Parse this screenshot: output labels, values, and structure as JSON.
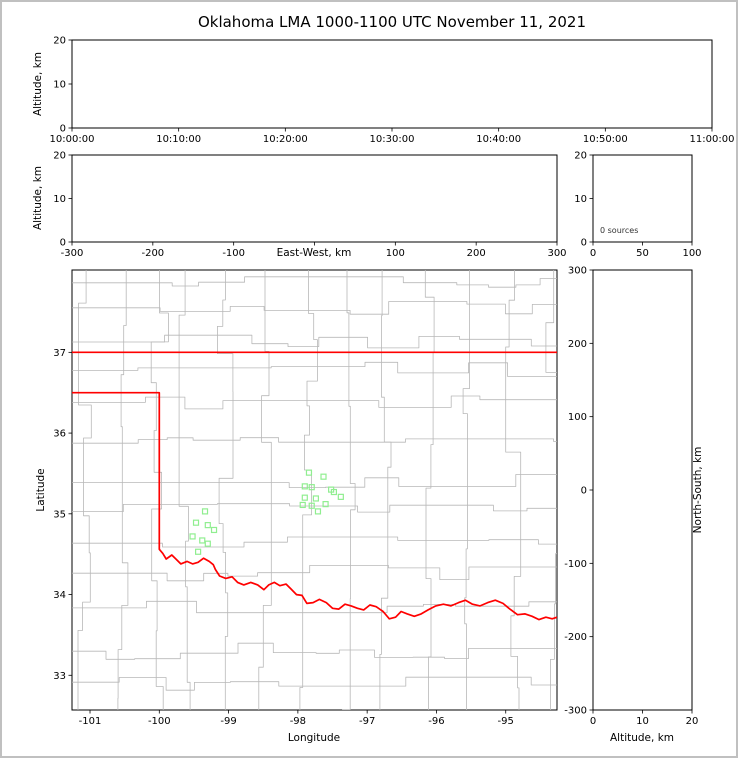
{
  "title": "Oklahoma LMA 1000-1100 UTC November 11, 2021",
  "colors": {
    "axis": "#000000",
    "state_boundary": "#ff0000",
    "county_lines": "#b8b8b8",
    "station_marker": "#90ee90"
  },
  "chart_data": [
    {
      "id": "time_height",
      "type": "scatter",
      "ylabel": "Altitude, km",
      "xticks": [
        "10:00:00",
        "10:10:00",
        "10:20:00",
        "10:30:00",
        "10:40:00",
        "10:50:00",
        "11:00:00"
      ],
      "ylim": [
        0,
        20
      ],
      "yticks": [
        0,
        10,
        20
      ],
      "sources": []
    },
    {
      "id": "ew_height",
      "type": "scatter",
      "xlabel": "East-West, km",
      "ylabel": "Altitude, km",
      "xlim": [
        -300,
        300
      ],
      "xticks": [
        -300,
        -200,
        -100,
        100,
        200,
        300
      ],
      "xtick_marks_only": [
        0
      ],
      "ylim": [
        0,
        20
      ],
      "yticks": [
        0,
        10,
        20
      ],
      "sources": []
    },
    {
      "id": "alt_histogram",
      "type": "line",
      "annotation": "0 sources",
      "xlim": [
        0,
        100
      ],
      "xticks": [
        0,
        50,
        100
      ],
      "ylim": [
        0,
        20
      ],
      "yticks": [
        0,
        10,
        20
      ],
      "sources": []
    },
    {
      "id": "plan_view_map",
      "type": "scatter",
      "xlabel": "Longitude",
      "ylabel": "Latitude",
      "xlim": [
        -101.26,
        -94.26
      ],
      "xticks": [
        -101,
        -100,
        -99,
        -98,
        -97,
        -96,
        -95
      ],
      "ylim": [
        32.57,
        38.02
      ],
      "yticks": [
        33,
        34,
        35,
        36,
        37
      ],
      "sources": [],
      "stations_lon_lat": [
        [
          -99.34,
          35.03
        ],
        [
          -99.47,
          34.89
        ],
        [
          -99.3,
          34.86
        ],
        [
          -99.21,
          34.8
        ],
        [
          -99.52,
          34.72
        ],
        [
          -99.38,
          34.67
        ],
        [
          -99.3,
          34.63
        ],
        [
          -99.44,
          34.53
        ],
        [
          -97.84,
          35.51
        ],
        [
          -97.63,
          35.46
        ],
        [
          -97.9,
          35.34
        ],
        [
          -97.8,
          35.33
        ],
        [
          -97.52,
          35.3
        ],
        [
          -97.48,
          35.27
        ],
        [
          -97.38,
          35.21
        ],
        [
          -97.9,
          35.2
        ],
        [
          -97.74,
          35.19
        ],
        [
          -97.93,
          35.11
        ],
        [
          -97.8,
          35.1
        ],
        [
          -97.71,
          35.03
        ],
        [
          -97.6,
          35.12
        ]
      ],
      "state_boundary": {
        "north_lat": 37.0,
        "panhandle_lat": 36.5,
        "west_lon": -100.0,
        "red_river": [
          [
            -100.0,
            34.56
          ],
          [
            -99.95,
            34.51
          ],
          [
            -99.9,
            34.44
          ],
          [
            -99.82,
            34.49
          ],
          [
            -99.76,
            34.44
          ],
          [
            -99.69,
            34.38
          ],
          [
            -99.6,
            34.41
          ],
          [
            -99.52,
            34.38
          ],
          [
            -99.44,
            34.4
          ],
          [
            -99.36,
            34.45
          ],
          [
            -99.28,
            34.41
          ],
          [
            -99.22,
            34.37
          ],
          [
            -99.19,
            34.31
          ],
          [
            -99.13,
            34.23
          ],
          [
            -99.04,
            34.2
          ],
          [
            -98.95,
            34.22
          ],
          [
            -98.87,
            34.15
          ],
          [
            -98.78,
            34.12
          ],
          [
            -98.68,
            34.15
          ],
          [
            -98.58,
            34.12
          ],
          [
            -98.49,
            34.06
          ],
          [
            -98.42,
            34.12
          ],
          [
            -98.34,
            34.15
          ],
          [
            -98.26,
            34.11
          ],
          [
            -98.17,
            34.13
          ],
          [
            -98.1,
            34.07
          ],
          [
            -98.02,
            34.0
          ],
          [
            -97.94,
            33.99
          ],
          [
            -97.87,
            33.89
          ],
          [
            -97.78,
            33.9
          ],
          [
            -97.69,
            33.94
          ],
          [
            -97.59,
            33.9
          ],
          [
            -97.5,
            33.83
          ],
          [
            -97.41,
            33.82
          ],
          [
            -97.32,
            33.88
          ],
          [
            -97.23,
            33.86
          ],
          [
            -97.14,
            33.83
          ],
          [
            -97.05,
            33.81
          ],
          [
            -96.96,
            33.87
          ],
          [
            -96.87,
            33.85
          ],
          [
            -96.77,
            33.79
          ],
          [
            -96.68,
            33.7
          ],
          [
            -96.59,
            33.72
          ],
          [
            -96.51,
            33.79
          ],
          [
            -96.42,
            33.76
          ],
          [
            -96.32,
            33.73
          ],
          [
            -96.22,
            33.76
          ],
          [
            -96.12,
            33.81
          ],
          [
            -96.01,
            33.86
          ],
          [
            -95.9,
            33.88
          ],
          [
            -95.79,
            33.86
          ],
          [
            -95.68,
            33.9
          ],
          [
            -95.58,
            33.93
          ],
          [
            -95.48,
            33.88
          ],
          [
            -95.37,
            33.86
          ],
          [
            -95.26,
            33.9
          ],
          [
            -95.15,
            33.93
          ],
          [
            -95.04,
            33.89
          ],
          [
            -94.94,
            33.82
          ],
          [
            -94.83,
            33.75
          ],
          [
            -94.72,
            33.76
          ],
          [
            -94.62,
            33.73
          ],
          [
            -94.52,
            33.69
          ],
          [
            -94.42,
            33.72
          ],
          [
            -94.33,
            33.7
          ],
          [
            -94.26,
            33.72
          ]
        ]
      },
      "county_grid": {
        "seed": 11
      }
    },
    {
      "id": "ns_height",
      "type": "scatter",
      "xlabel": "Altitude, km",
      "ylabel": "North-South, km",
      "xlim": [
        0,
        20
      ],
      "xticks": [
        0,
        10,
        20
      ],
      "ylim": [
        -300,
        300
      ],
      "yticks": [
        -300,
        -200,
        -100,
        0,
        100,
        200,
        300
      ],
      "sources": []
    }
  ]
}
